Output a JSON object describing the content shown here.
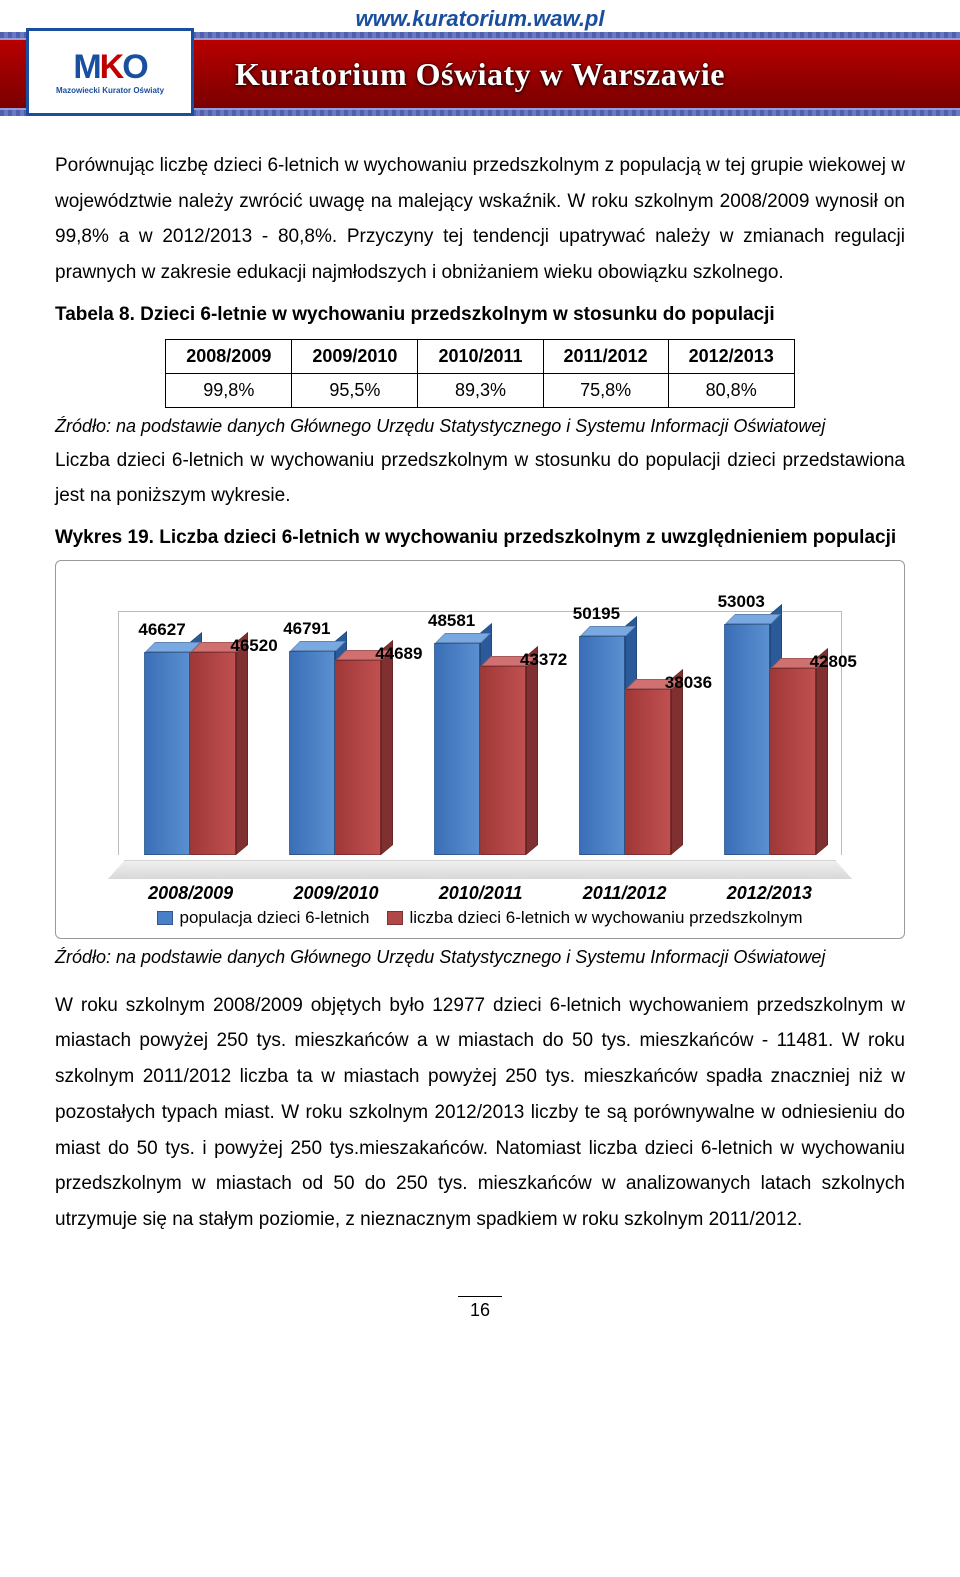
{
  "header": {
    "url": "www.kuratorium.waw.pl",
    "title": "Kuratorium Oświaty w Warszawie",
    "logo_main": "MKO",
    "logo_sub": "Mazowiecki Kurator Oświaty"
  },
  "paragraph1": "Porównując liczbę dzieci 6-letnich w wychowaniu przedszkolnym z populacją w tej grupie wiekowej w województwie należy zwrócić uwagę na malejący wskaźnik. W roku szkolnym 2008/2009 wynosił on 99,8% a w 2012/2013 - 80,8%.  Przyczyny tej tendencji upatrywać należy w zmianach regulacji prawnych w zakresie edukacji najmłodszych i obniżaniem wieku obowiązku szkolnego.",
  "table_caption": "Tabela 8. Dzieci 6-letnie w wychowaniu przedszkolnym w stosunku do populacji",
  "table": {
    "headers": [
      "2008/2009",
      "2009/2010",
      "2010/2011",
      "2011/2012",
      "2012/2013"
    ],
    "row": [
      "99,8%",
      "95,5%",
      "89,3%",
      "75,8%",
      "80,8%"
    ]
  },
  "source_line": "Źródło: na podstawie danych Głównego Urzędu Statystycznego i Systemu Informacji Oświatowej",
  "paragraph2": "Liczba dzieci 6-letnich w wychowaniu przedszkolnym w stosunku do populacji dzieci przedstawiona jest na poniższym wykresie.",
  "chart_caption": "Wykres 19. Liczba dzieci 6-letnich w wychowaniu przedszkolnym z uwzględnieniem populacji",
  "chart": {
    "type": "bar",
    "categories": [
      "2008/2009",
      "2009/2010",
      "2010/2011",
      "2011/2012",
      "2012/2013"
    ],
    "series": [
      {
        "name": "populacja dzieci 6-letnich",
        "color": "#4a7fc8",
        "color_top": "#7aa8e0",
        "color_side": "#2a5a9a",
        "values": [
          46627,
          46791,
          48581,
          50195,
          53003
        ]
      },
      {
        "name": "liczba dzieci 6-letnich w wychowaniu przedszkolnym",
        "color": "#b04848",
        "color_top": "#d07070",
        "color_side": "#803030",
        "values": [
          46520,
          44689,
          43372,
          38036,
          42805
        ]
      }
    ],
    "ymax": 55000,
    "background_color": "#ffffff",
    "floor_color": "#e8e8e8",
    "label_fontsize": 17,
    "axis_font_weight": "bold",
    "legend_swatch_blue": "#4a7fc8",
    "legend_swatch_red": "#b04848"
  },
  "paragraph3": "W roku szkolnym 2008/2009 objętych było 12977 dzieci 6-letnich wychowaniem przedszkolnym w miastach powyżej 250 tys. mieszkańców a w miastach do 50 tys. mieszkańców - 11481. W roku szkolnym 2011/2012 liczba ta w miastach powyżej 250 tys. mieszkańców spadła znaczniej niż w pozostałych typach miast. W roku szkolnym 2012/2013 liczby te są porównywalne w odniesieniu do miast do 50 tys. i powyżej 250 tys.mieszakańców. Natomiast liczba dzieci 6-letnich w wychowaniu przedszkolnym w miastach od 50 do 250 tys. mieszkańców w analizowanych latach szkolnych utrzymuje się na stałym poziomie, z nieznacznym spadkiem w roku szkolnym 2011/2012.",
  "page_number": "16"
}
